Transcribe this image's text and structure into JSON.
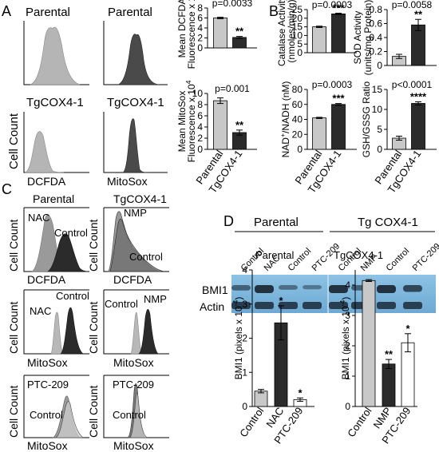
{
  "panels": {
    "A": "A",
    "B": "B",
    "C": "C",
    "D": "D"
  },
  "panelA": {
    "hist_titles": [
      "Parental",
      "Parental",
      "TgCOX4-1",
      "TgCOX4-1"
    ],
    "ylabel_cell_count": "Cell Count",
    "xlabel_dcfda": "DCFDA",
    "xlabel_mitosox": "MitoSox"
  },
  "panelC": {
    "col_titles": [
      "Parental",
      "TgCOX4-1"
    ],
    "ylabel": "Cell Count",
    "xlabels": [
      "DCFDA",
      "DCFDA",
      "MitoSox",
      "MitoSox",
      "MitoSox",
      "MitoSox"
    ],
    "hist_labels": {
      "r1_left": [
        "NAC",
        "Control"
      ],
      "r1_right": [
        "NMP",
        "Control"
      ],
      "r2_left": [
        "Control",
        "NAC"
      ],
      "r2_right": [
        "Control",
        "NMP"
      ],
      "r3_left": [
        "PTC-209",
        "Control"
      ],
      "r3_right": [
        "PTC-209",
        "Control"
      ]
    }
  },
  "blot": {
    "groups": [
      "Parental",
      "Tg COX4-1"
    ],
    "lanes": [
      "Control",
      "NAC",
      "Control",
      "PTC-209",
      "Control",
      "NMP",
      "Control",
      "PTC-209"
    ],
    "rows": [
      "BMI1",
      "Actin"
    ],
    "bg_color": "#7fb8dd"
  },
  "colors": {
    "light": "#c8c8c8",
    "dark": "#2b2b2b",
    "white": "#ffffff"
  },
  "chart_data": [
    {
      "id": "mean-dcfda",
      "type": "bar",
      "categories": [
        "Parental",
        "TgCOX4-1"
      ],
      "values": [
        6.0,
        2.1
      ],
      "errors": [
        0.15,
        0.2
      ],
      "ylabel": [
        "Mean DCFDA",
        "Fluorescence x 10^5"
      ],
      "ylim": [
        0,
        8
      ],
      "yticks": [
        0,
        2,
        4,
        6,
        8
      ],
      "pvalue": "p=0.0033",
      "stars": [
        "",
        "**"
      ],
      "show_xticklabels": false
    },
    {
      "id": "mean-mitosox",
      "type": "bar",
      "categories": [
        "Parental",
        "TgCOX4-1"
      ],
      "values": [
        8.7,
        3.0
      ],
      "errors": [
        0.5,
        0.45
      ],
      "ylabel": [
        "Mean MitoSox",
        "Fluorescence x 10^4"
      ],
      "ylim": [
        0,
        10
      ],
      "yticks": [
        0,
        2,
        4,
        6,
        8,
        10
      ],
      "pvalue": "p=0.001",
      "stars": [
        "",
        "**"
      ],
      "show_xticklabels": true
    },
    {
      "id": "catalase",
      "type": "bar",
      "categories": [
        "Parental",
        "TgCOX4-1"
      ],
      "values": [
        15.0,
        22.5
      ],
      "errors": [
        0.4,
        0.4
      ],
      "ylabel": [
        "Catalase Activity",
        "(nmoles/min/g)"
      ],
      "ylim": [
        0,
        25
      ],
      "yticks": [
        0,
        5,
        10,
        15,
        20,
        25
      ],
      "pvalue": "p=0.0003",
      "stars": [
        "",
        "***"
      ],
      "show_xticklabels": false
    },
    {
      "id": "sod",
      "type": "bar",
      "categories": [
        "Parental",
        "TgCOX4-1"
      ],
      "values": [
        0.13,
        0.58
      ],
      "errors": [
        0.03,
        0.08
      ],
      "ylabel": [
        "SOD Activity",
        "(units/mg Protein)"
      ],
      "ylim": [
        0,
        0.8
      ],
      "yticks": [
        0,
        0.2,
        0.4,
        0.6,
        0.8
      ],
      "pvalue": "p=0.0058",
      "stars": [
        "",
        "**"
      ],
      "show_xticklabels": false
    },
    {
      "id": "nad-nadh",
      "type": "bar",
      "categories": [
        "Parental",
        "TgCOX4-1"
      ],
      "values": [
        42,
        60
      ],
      "errors": [
        0.8,
        1.2
      ],
      "ylabel": [
        "NAD+/NADH (nM)"
      ],
      "ylim": [
        0,
        80
      ],
      "yticks": [
        0,
        20,
        40,
        60,
        80
      ],
      "pvalue": "p=0.0003",
      "stars": [
        "",
        "***"
      ],
      "show_xticklabels": true
    },
    {
      "id": "gsh-gssg",
      "type": "bar",
      "categories": [
        "Parental",
        "TgCOX4-1"
      ],
      "values": [
        2.8,
        11.5
      ],
      "errors": [
        0.5,
        0.4
      ],
      "ylabel": [
        "GSH/GSSG Ratio"
      ],
      "ylim": [
        0,
        15
      ],
      "yticks": [
        0,
        5,
        10,
        15
      ],
      "pvalue": "p<0.0001",
      "stars": [
        "",
        "****"
      ],
      "show_xticklabels": true
    },
    {
      "id": "bmi1-parental",
      "type": "bar",
      "title": "Parental",
      "categories": [
        "Control",
        "NAC",
        "PTC-209"
      ],
      "values": [
        0.45,
        2.45,
        0.2
      ],
      "errors": [
        0.05,
        0.5,
        0.05
      ],
      "ylabel": [
        "BMI1 (pixels x 10^-4)"
      ],
      "ylim": [
        0,
        4
      ],
      "yticks": [
        0,
        1,
        2,
        3,
        4
      ],
      "stars": [
        "",
        "*",
        "*"
      ],
      "show_xticklabels": true
    },
    {
      "id": "bmi1-tgcox4",
      "type": "bar",
      "title": "TgCOX4-1",
      "categories": [
        "Control",
        "NMP",
        "PTC-209"
      ],
      "values": [
        4.15,
        1.4,
        2.1
      ],
      "errors": [
        0.03,
        0.15,
        0.3
      ],
      "ylabel": [
        "BMI1 (pixels x 10^-4)"
      ],
      "ylim": [
        0,
        4.5
      ],
      "yticks": [
        0,
        1,
        2,
        3,
        4
      ],
      "stars": [
        "",
        "**",
        "*"
      ],
      "show_xticklabels": true
    }
  ]
}
